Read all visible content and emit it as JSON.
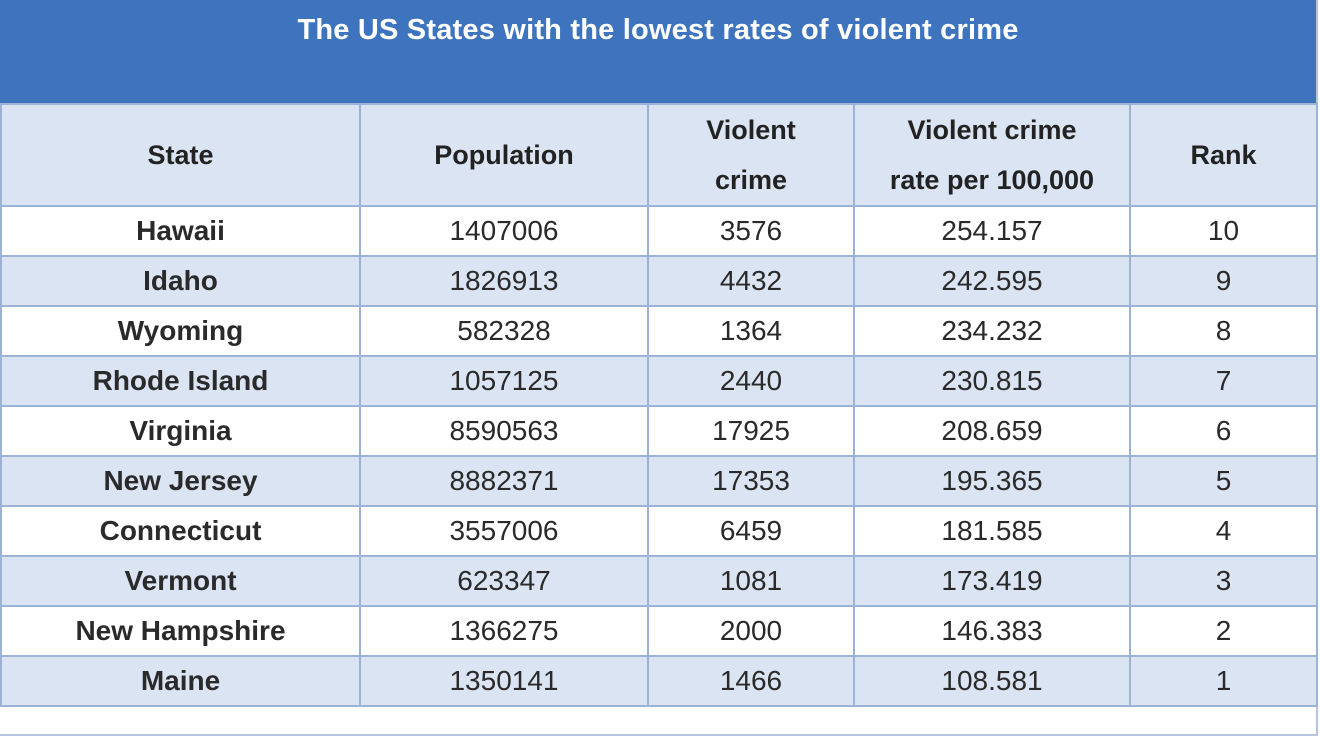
{
  "chart_data": {
    "type": "table",
    "title": "The US States with the lowest rates of violent crime",
    "columns": {
      "state": "State",
      "population": "Population",
      "violent_crime_line1": "Violent",
      "violent_crime_line2": "crime",
      "rate_line1": "Violent crime",
      "rate_line2": "rate per 100,000",
      "rank": "Rank"
    },
    "rows": [
      {
        "state": "Hawaii",
        "population": "1407006",
        "violent_crime": "3576",
        "rate": "254.157",
        "rank": "10"
      },
      {
        "state": "Idaho",
        "population": "1826913",
        "violent_crime": "4432",
        "rate": "242.595",
        "rank": "9"
      },
      {
        "state": "Wyoming",
        "population": "582328",
        "violent_crime": "1364",
        "rate": "234.232",
        "rank": "8"
      },
      {
        "state": "Rhode Island",
        "population": "1057125",
        "violent_crime": "2440",
        "rate": "230.815",
        "rank": "7"
      },
      {
        "state": "Virginia",
        "population": "8590563",
        "violent_crime": "17925",
        "rate": "208.659",
        "rank": "6"
      },
      {
        "state": "New Jersey",
        "population": "8882371",
        "violent_crime": "17353",
        "rate": "195.365",
        "rank": "5"
      },
      {
        "state": "Connecticut",
        "population": "3557006",
        "violent_crime": "6459",
        "rate": "181.585",
        "rank": "4"
      },
      {
        "state": "Vermont",
        "population": "623347",
        "violent_crime": "1081",
        "rate": "173.419",
        "rank": "3"
      },
      {
        "state": "New Hampshire",
        "population": "1366275",
        "violent_crime": "2000",
        "rate": "146.383",
        "rank": "2"
      },
      {
        "state": "Maine",
        "population": "1350141",
        "violent_crime": "1466",
        "rate": "108.581",
        "rank": "1"
      }
    ]
  },
  "colors": {
    "title_background": "#3e73be",
    "header_background": "#dbe4f2",
    "row_alt_background": "#dbe4f2",
    "border": "#9db3d6"
  }
}
